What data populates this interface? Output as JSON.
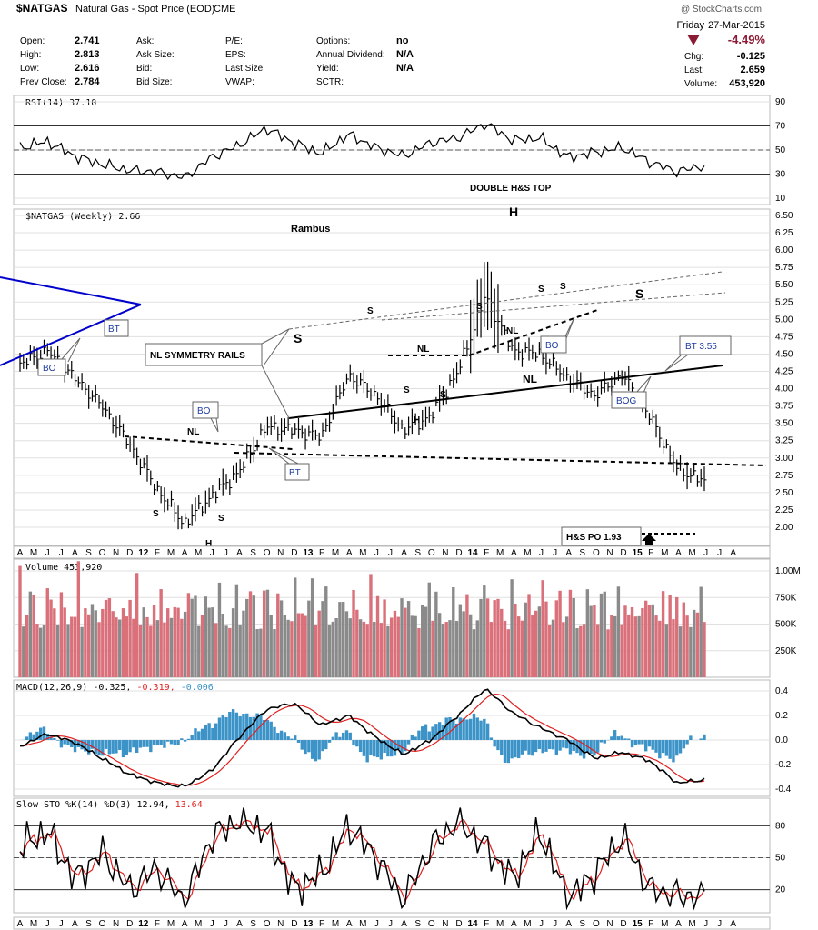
{
  "colors": {
    "price": "#000000",
    "trendline": "#0000cc",
    "up_volume": "#8a8a8a",
    "down_volume": "#d9707a",
    "macd_line": "#000000",
    "macd_signal": "#e0201f",
    "histogram": "#3b93c8",
    "sto_k": "#000000",
    "sto_d": "#e0201f",
    "change_red": "#8b1a35",
    "sto_readout": "#e0201f",
    "macd_readout_signal": "#e0201f",
    "macd_readout_hist": "#3b93c8"
  },
  "header": {
    "symbol": "$NATGAS",
    "name": "Natural Gas - Spot Price (EOD)",
    "exchange": "CME",
    "watermark": "@ StockCharts.com",
    "day": "Friday",
    "date": "27-Mar-2015",
    "change_pct": "-4.49%",
    "quote": [
      {
        "label": "Open:",
        "value": "2.741"
      },
      {
        "label": "High:",
        "value": "2.813"
      },
      {
        "label": "Low:",
        "value": "2.616"
      },
      {
        "label": "Prev Close:",
        "value": "2.784"
      }
    ],
    "quote2": [
      "Ask:",
      "Ask Size:",
      "Bid:",
      "Bid Size:"
    ],
    "quote3": [
      "P/E:",
      "EPS:",
      "Last Size:",
      "VWAP:"
    ],
    "quote4": [
      {
        "label": "Options:",
        "value": "no"
      },
      {
        "label": "Annual Dividend:",
        "value": "N/A"
      },
      {
        "label": "Yield:",
        "value": "N/A"
      },
      {
        "label": "SCTR:",
        "value": ""
      }
    ],
    "stats": [
      {
        "label": "Chg:",
        "value": "-0.125"
      },
      {
        "label": "Last:",
        "value": "2.659"
      },
      {
        "label": "Volume:",
        "value": "453,920"
      }
    ]
  },
  "panels": {
    "rsi": {
      "label": "RSI(14) 37.10",
      "ticks": [
        "90",
        "70",
        "50",
        "30",
        "10"
      ],
      "levels": [
        90,
        70,
        50,
        30,
        10
      ]
    },
    "price": {
      "label": "$NATGAS (Weekly) 2.66",
      "ticks": [
        "6.50",
        "6.25",
        "6.00",
        "5.75",
        "5.50",
        "5.25",
        "5.00",
        "4.75",
        "4.50",
        "4.25",
        "4.00",
        "3.75",
        "3.50",
        "3.25",
        "3.00",
        "2.75",
        "2.50",
        "2.25",
        "2.00"
      ]
    },
    "volume": {
      "label": "Volume 453,920",
      "ticks": [
        "1.00M",
        "750K",
        "500K",
        "250K"
      ]
    },
    "macd": {
      "label_prefix": "MACD(12,26,9)",
      "macd_val": "-0.325,",
      "signal_val": "-0.319,",
      "hist_val": "-0.006",
      "ticks": [
        "0.4",
        "0.2",
        "0.0",
        "-0.2",
        "-0.4"
      ]
    },
    "sto": {
      "label_prefix": "Slow STO %K(14) %D(3)",
      "k_val": "12.94,",
      "d_val": "13.64",
      "ticks": [
        "80",
        "50",
        "20"
      ]
    }
  },
  "x_axis": [
    "A",
    "M",
    "J",
    "J",
    "A",
    "S",
    "O",
    "N",
    "D",
    "12",
    "F",
    "M",
    "A",
    "M",
    "J",
    "J",
    "A",
    "S",
    "O",
    "N",
    "D",
    "13",
    "F",
    "M",
    "A",
    "M",
    "J",
    "J",
    "A",
    "S",
    "O",
    "N",
    "D",
    "14",
    "F",
    "M",
    "A",
    "M",
    "J",
    "J",
    "A",
    "S",
    "O",
    "N",
    "D",
    "15",
    "F",
    "M",
    "A",
    "M",
    "J",
    "J",
    "A"
  ],
  "annotations": {
    "title": "DOUBLE H&S TOP",
    "author": "Rambus",
    "rails": "NL SYMMETRY RAILS",
    "po": "H&S PO 1.93",
    "bt355": "BT 3.55",
    "bo1": "BO",
    "bt1": "BT",
    "bo2": "BO",
    "bt2": "BT",
    "bo3": "BO",
    "bog": "BOG",
    "nl1": "NL",
    "nl2": "NL",
    "nl3": "NL",
    "nl4": "NL",
    "s1": "S",
    "s2": "S",
    "h1": "H",
    "s3": "S",
    "s4": "S",
    "h2": "H",
    "s5": "S",
    "s6": "S",
    "h3": "H",
    "s7": "S",
    "s8": "S",
    "s9": "S"
  },
  "chart_data": {
    "type": "line",
    "symbol": "$NATGAS",
    "interval": "weekly",
    "period": "Apr 2011 - Mar 2015",
    "x": [
      "2011-04",
      "2011-06",
      "2011-08",
      "2011-10",
      "2011-12",
      "2012-02",
      "2012-04",
      "2012-06",
      "2012-08",
      "2012-10",
      "2012-12",
      "2013-02",
      "2013-04",
      "2013-06",
      "2013-08",
      "2013-10",
      "2013-12",
      "2014-02",
      "2014-03",
      "2014-05",
      "2014-07",
      "2014-09",
      "2014-11",
      "2014-12",
      "2015-02",
      "2015-03"
    ],
    "series": [
      {
        "name": "$NATGAS",
        "values": [
          4.35,
          4.55,
          4.15,
          3.75,
          3.2,
          2.55,
          2.05,
          2.45,
          2.8,
          3.45,
          3.4,
          3.3,
          4.2,
          3.9,
          3.4,
          3.6,
          4.25,
          5.35,
          4.55,
          4.5,
          4.15,
          3.9,
          4.2,
          3.6,
          2.85,
          2.66
        ]
      },
      {
        "name": "RSI(14)",
        "values": [
          52,
          57,
          45,
          38,
          33,
          32,
          27,
          44,
          54,
          68,
          56,
          47,
          63,
          52,
          45,
          56,
          60,
          72,
          58,
          60,
          44,
          48,
          52,
          40,
          32,
          37.1
        ]
      },
      {
        "name": "MACD(12,26,9)",
        "values": [
          -0.05,
          0.05,
          -0.02,
          -0.15,
          -0.28,
          -0.35,
          -0.38,
          -0.25,
          0.02,
          0.25,
          0.3,
          0.12,
          0.2,
          0.02,
          -0.12,
          0.0,
          0.2,
          0.42,
          0.22,
          0.1,
          0.0,
          -0.15,
          -0.1,
          -0.17,
          -0.35,
          -0.325
        ]
      },
      {
        "name": "Slow STO %K",
        "values": [
          60,
          75,
          30,
          55,
          20,
          40,
          8,
          70,
          85,
          75,
          20,
          35,
          80,
          50,
          10,
          60,
          85,
          60,
          30,
          75,
          10,
          35,
          70,
          20,
          15,
          12.94
        ]
      }
    ],
    "rsi_range": [
      10,
      90
    ],
    "price_range": [
      2.0,
      6.5
    ],
    "volume_range": [
      0,
      1000000
    ],
    "macd_range": [
      -0.4,
      0.4
    ],
    "sto_range": [
      0,
      100
    ],
    "grid": true,
    "legend": "top-left"
  }
}
